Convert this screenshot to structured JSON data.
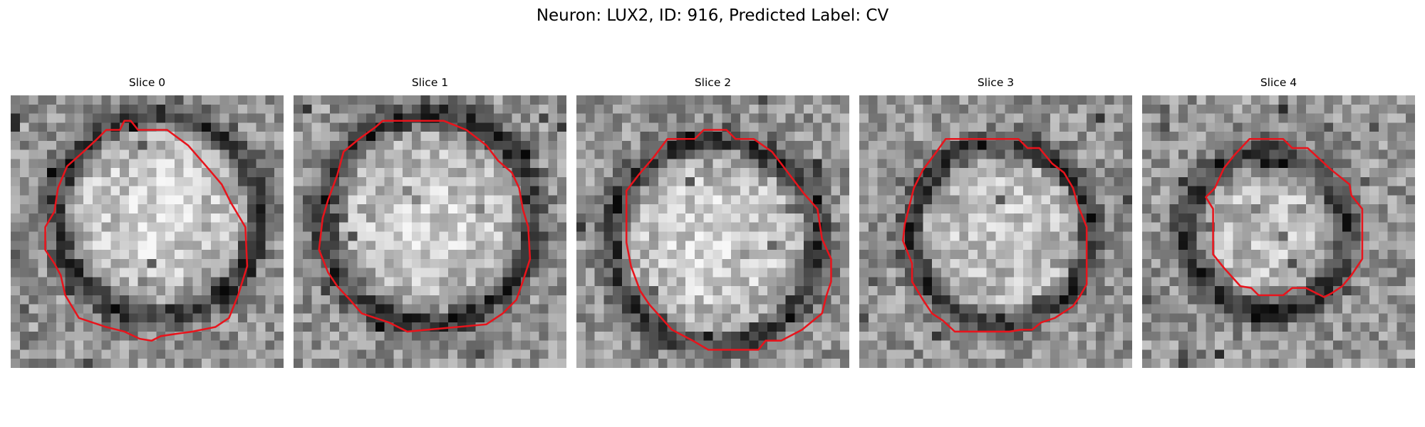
{
  "figure": {
    "title": "Neuron: LUX2, ID: 916, Predicted Label: CV"
  },
  "contour_color": "#e8141c",
  "panels": [
    {
      "title": "Slice 0"
    },
    {
      "title": "Slice 1"
    },
    {
      "title": "Slice 2"
    },
    {
      "title": "Slice 3"
    },
    {
      "title": "Slice 4"
    }
  ]
}
